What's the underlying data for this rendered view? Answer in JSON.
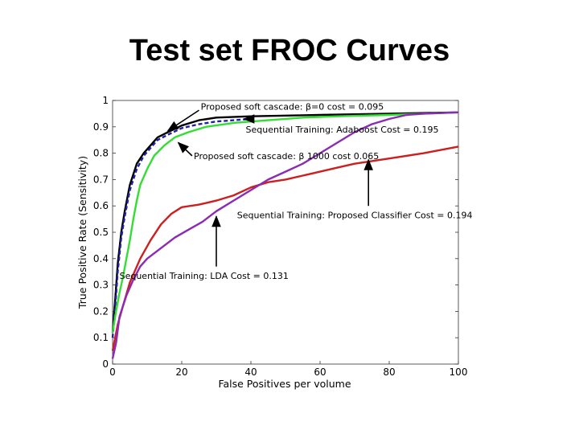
{
  "slide": {
    "title": "Test set FROC Curves"
  },
  "chart_data": {
    "type": "line",
    "title": "",
    "xlabel": "False Positives per volume",
    "ylabel": "True Positive Rate (Sensitivity)",
    "xlim": [
      0,
      100
    ],
    "ylim": [
      0,
      1
    ],
    "x_ticks": [
      "0",
      "20",
      "40",
      "60",
      "80",
      "100"
    ],
    "y_ticks": [
      "0",
      "0.1",
      "0.2",
      "0.3",
      "0.4",
      "0.5",
      "0.6",
      "0.7",
      "0.8",
      "0.9",
      "1"
    ],
    "grid": false,
    "series": [
      {
        "color": "#000000",
        "dash": false,
        "points": [
          [
            0,
            0.12
          ],
          [
            0.8,
            0.25
          ],
          [
            1.5,
            0.38
          ],
          [
            2.5,
            0.5
          ],
          [
            3.5,
            0.58
          ],
          [
            5,
            0.68
          ],
          [
            7,
            0.76
          ],
          [
            9,
            0.8
          ],
          [
            11,
            0.83
          ],
          [
            13,
            0.86
          ],
          [
            16,
            0.88
          ],
          [
            20,
            0.905
          ],
          [
            25,
            0.925
          ],
          [
            30,
            0.935
          ],
          [
            40,
            0.94
          ],
          [
            60,
            0.945
          ],
          [
            80,
            0.95
          ],
          [
            100,
            0.955
          ]
        ]
      },
      {
        "color": "#1f1fa8",
        "dash": true,
        "points": [
          [
            0,
            0.1
          ],
          [
            0.8,
            0.22
          ],
          [
            1.5,
            0.35
          ],
          [
            2.5,
            0.48
          ],
          [
            3.5,
            0.56
          ],
          [
            5,
            0.66
          ],
          [
            7,
            0.74
          ],
          [
            9,
            0.79
          ],
          [
            11,
            0.82
          ],
          [
            13,
            0.85
          ],
          [
            16,
            0.87
          ],
          [
            20,
            0.895
          ],
          [
            25,
            0.91
          ],
          [
            30,
            0.92
          ],
          [
            35,
            0.925
          ],
          [
            40,
            0.93
          ]
        ]
      },
      {
        "color": "#33dd33",
        "dash": false,
        "points": [
          [
            0,
            0.12
          ],
          [
            1,
            0.2
          ],
          [
            2,
            0.27
          ],
          [
            3,
            0.33
          ],
          [
            4,
            0.4
          ],
          [
            5,
            0.47
          ],
          [
            6,
            0.55
          ],
          [
            7,
            0.62
          ],
          [
            8,
            0.68
          ],
          [
            10,
            0.74
          ],
          [
            12,
            0.79
          ],
          [
            15,
            0.83
          ],
          [
            18,
            0.86
          ],
          [
            22,
            0.88
          ],
          [
            27,
            0.9
          ],
          [
            35,
            0.915
          ],
          [
            45,
            0.925
          ],
          [
            55,
            0.935
          ],
          [
            65,
            0.94
          ],
          [
            80,
            0.945
          ],
          [
            90,
            0.95
          ],
          [
            100,
            0.955
          ]
        ]
      },
      {
        "color": "#cc1f1f",
        "dash": false,
        "points": [
          [
            0,
            0.05
          ],
          [
            1.5,
            0.15
          ],
          [
            3,
            0.22
          ],
          [
            5,
            0.31
          ],
          [
            8,
            0.4
          ],
          [
            11,
            0.47
          ],
          [
            14,
            0.53
          ],
          [
            17,
            0.57
          ],
          [
            20,
            0.595
          ],
          [
            25,
            0.605
          ],
          [
            30,
            0.62
          ],
          [
            35,
            0.64
          ],
          [
            40,
            0.67
          ],
          [
            45,
            0.69
          ],
          [
            50,
            0.7
          ],
          [
            55,
            0.715
          ],
          [
            60,
            0.73
          ],
          [
            65,
            0.745
          ],
          [
            70,
            0.76
          ],
          [
            80,
            0.78
          ],
          [
            90,
            0.8
          ],
          [
            100,
            0.825
          ]
        ]
      },
      {
        "color": "#8b2bb3",
        "dash": false,
        "points": [
          [
            0,
            0.02
          ],
          [
            1,
            0.08
          ],
          [
            2,
            0.18
          ],
          [
            4,
            0.26
          ],
          [
            6,
            0.32
          ],
          [
            8,
            0.37
          ],
          [
            10,
            0.4
          ],
          [
            14,
            0.44
          ],
          [
            18,
            0.48
          ],
          [
            22,
            0.51
          ],
          [
            26,
            0.54
          ],
          [
            30,
            0.58
          ],
          [
            35,
            0.62
          ],
          [
            40,
            0.66
          ],
          [
            45,
            0.7
          ],
          [
            50,
            0.73
          ],
          [
            55,
            0.76
          ],
          [
            60,
            0.8
          ],
          [
            65,
            0.84
          ],
          [
            70,
            0.88
          ],
          [
            75,
            0.91
          ],
          [
            80,
            0.93
          ],
          [
            85,
            0.945
          ],
          [
            90,
            0.95
          ],
          [
            100,
            0.955
          ]
        ]
      }
    ],
    "annotations": [
      {
        "text": "Proposed soft cascade: β=0 cost = 0.095",
        "text_at": [
          25.5,
          0.977
        ],
        "arrow_from": [
          25,
          0.963
        ],
        "arrow_to": [
          16,
          0.885
        ]
      },
      {
        "text": "Sequential Training: Adaboost Cost = 0.195",
        "text_at": [
          38.5,
          0.89
        ],
        "arrow_from": [
          40,
          0.93
        ],
        "arrow_to": [
          38,
          0.93
        ]
      },
      {
        "text": "Proposed soft cascade: β  1000 cost     0.065",
        "text_at": [
          23.5,
          0.79
        ],
        "arrow_from": [
          23,
          0.79
        ],
        "arrow_to": [
          19,
          0.84
        ]
      },
      {
        "text": "Sequential Training: Proposed Classifier Cost = 0.194",
        "text_at": [
          36,
          0.565
        ],
        "arrow_from": [
          74,
          0.6
        ],
        "arrow_to": [
          74,
          0.775
        ]
      },
      {
        "text": "Sequential Training: LDA Cost = 0.131",
        "text_at": [
          2,
          0.335
        ],
        "arrow_from": [
          30,
          0.37
        ],
        "arrow_to": [
          30,
          0.56
        ]
      }
    ]
  }
}
